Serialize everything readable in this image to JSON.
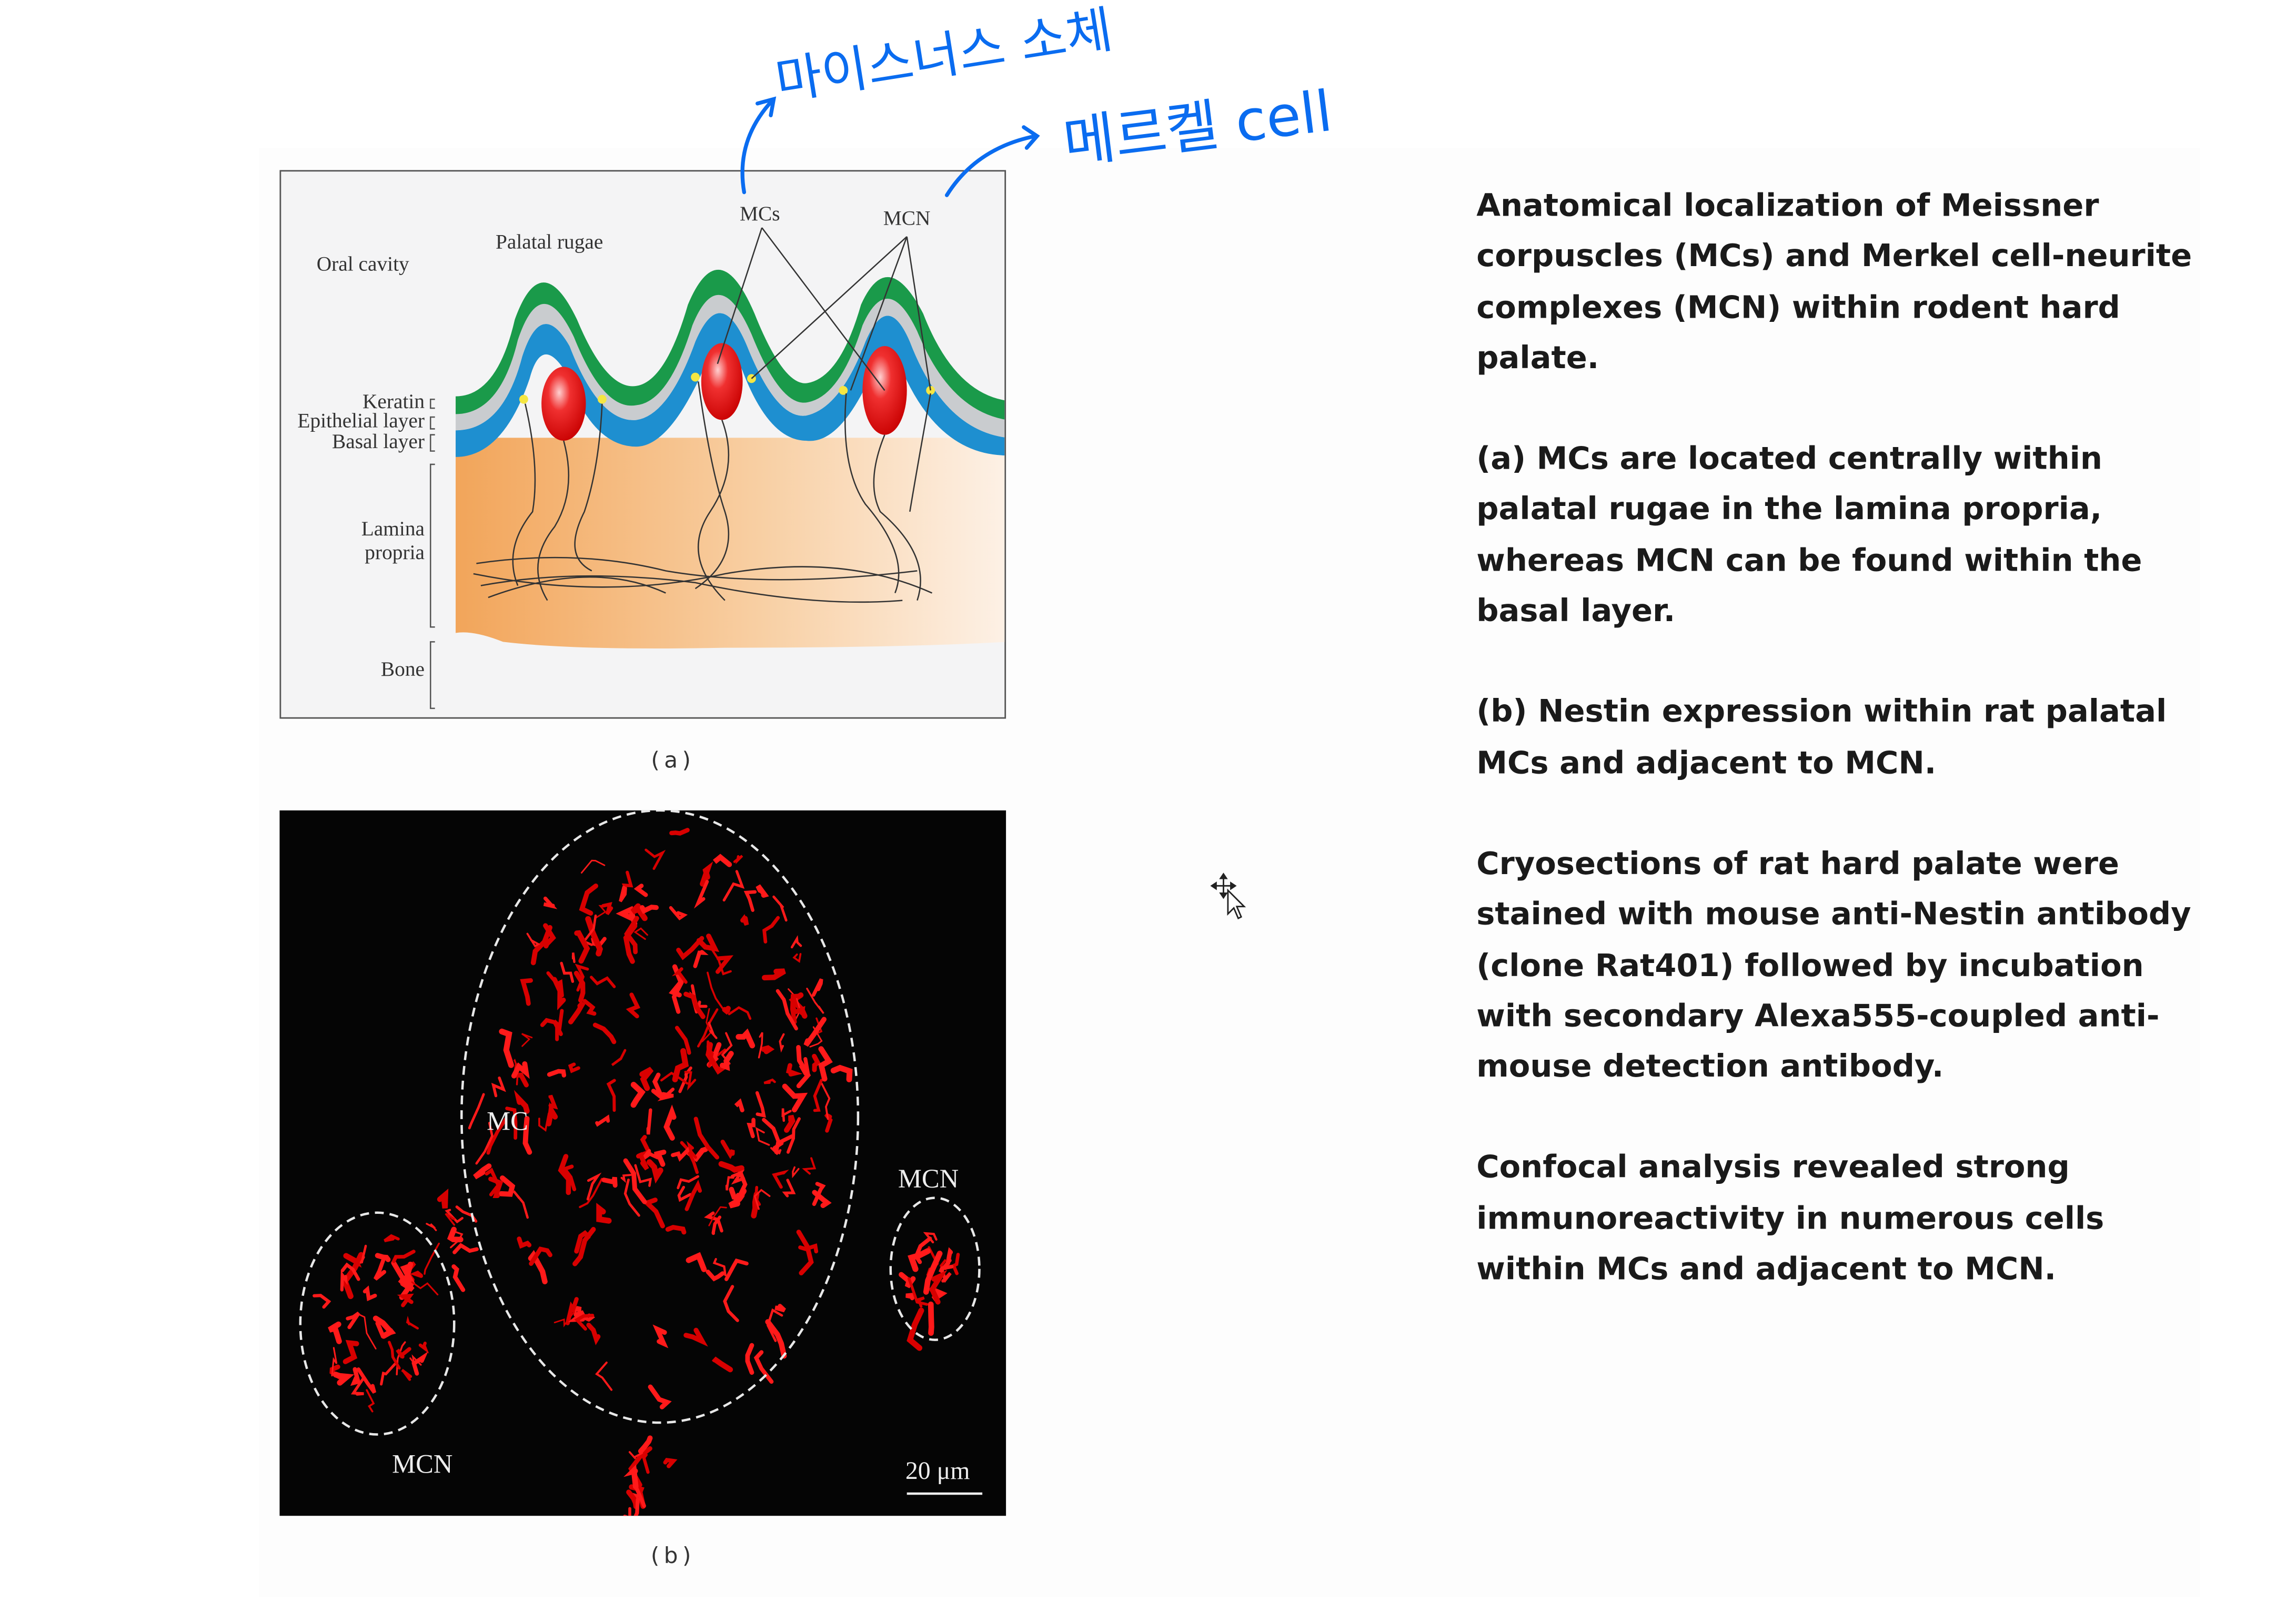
{
  "figure_a": {
    "labels": {
      "oral_cavity": "Oral cavity",
      "palatal_rugae": "Palatal rugae",
      "mcs": "MCs",
      "mcn": "MCN",
      "keratin": "Keratin",
      "epithelial_layer": "Epithelial layer",
      "basal_layer": "Basal layer",
      "lamina": "Lamina",
      "propria": "propria",
      "bone": "Bone"
    },
    "caption": "(a)"
  },
  "figure_b": {
    "labels": {
      "mc": "MC",
      "mcn_right": "MCN",
      "mcn_left": "MCN",
      "scale": "20 μm"
    },
    "caption": "(b)"
  },
  "annotations": {
    "meissner": "마이스너스 소체",
    "merkel": "메르켈 cell",
    "color": "#0a6cf0"
  },
  "description": {
    "paragraphs": [
      "Anatomical localization of Meissner corpuscles (MCs) and Merkel cell-neurite complexes (MCN) within rodent hard palate.",
      "(a) MCs are located centrally within palatal rugae in the lamina propria, whereas MCN can be found within the basal layer.",
      "(b) Nestin expression within rat palatal MCs and adjacent to MCN.",
      "Cryosections of rat hard palate were stained with mouse anti-Nestin antibody (clone Rat401) followed by incubation with secondary Alexa555-coupled anti-mouse detection antibody.",
      "Confocal analysis revealed strong immunoreactivity in numerous cells within MCs and adjacent to MCN."
    ]
  },
  "cursor": {
    "icon": "move-cursor-icon"
  }
}
